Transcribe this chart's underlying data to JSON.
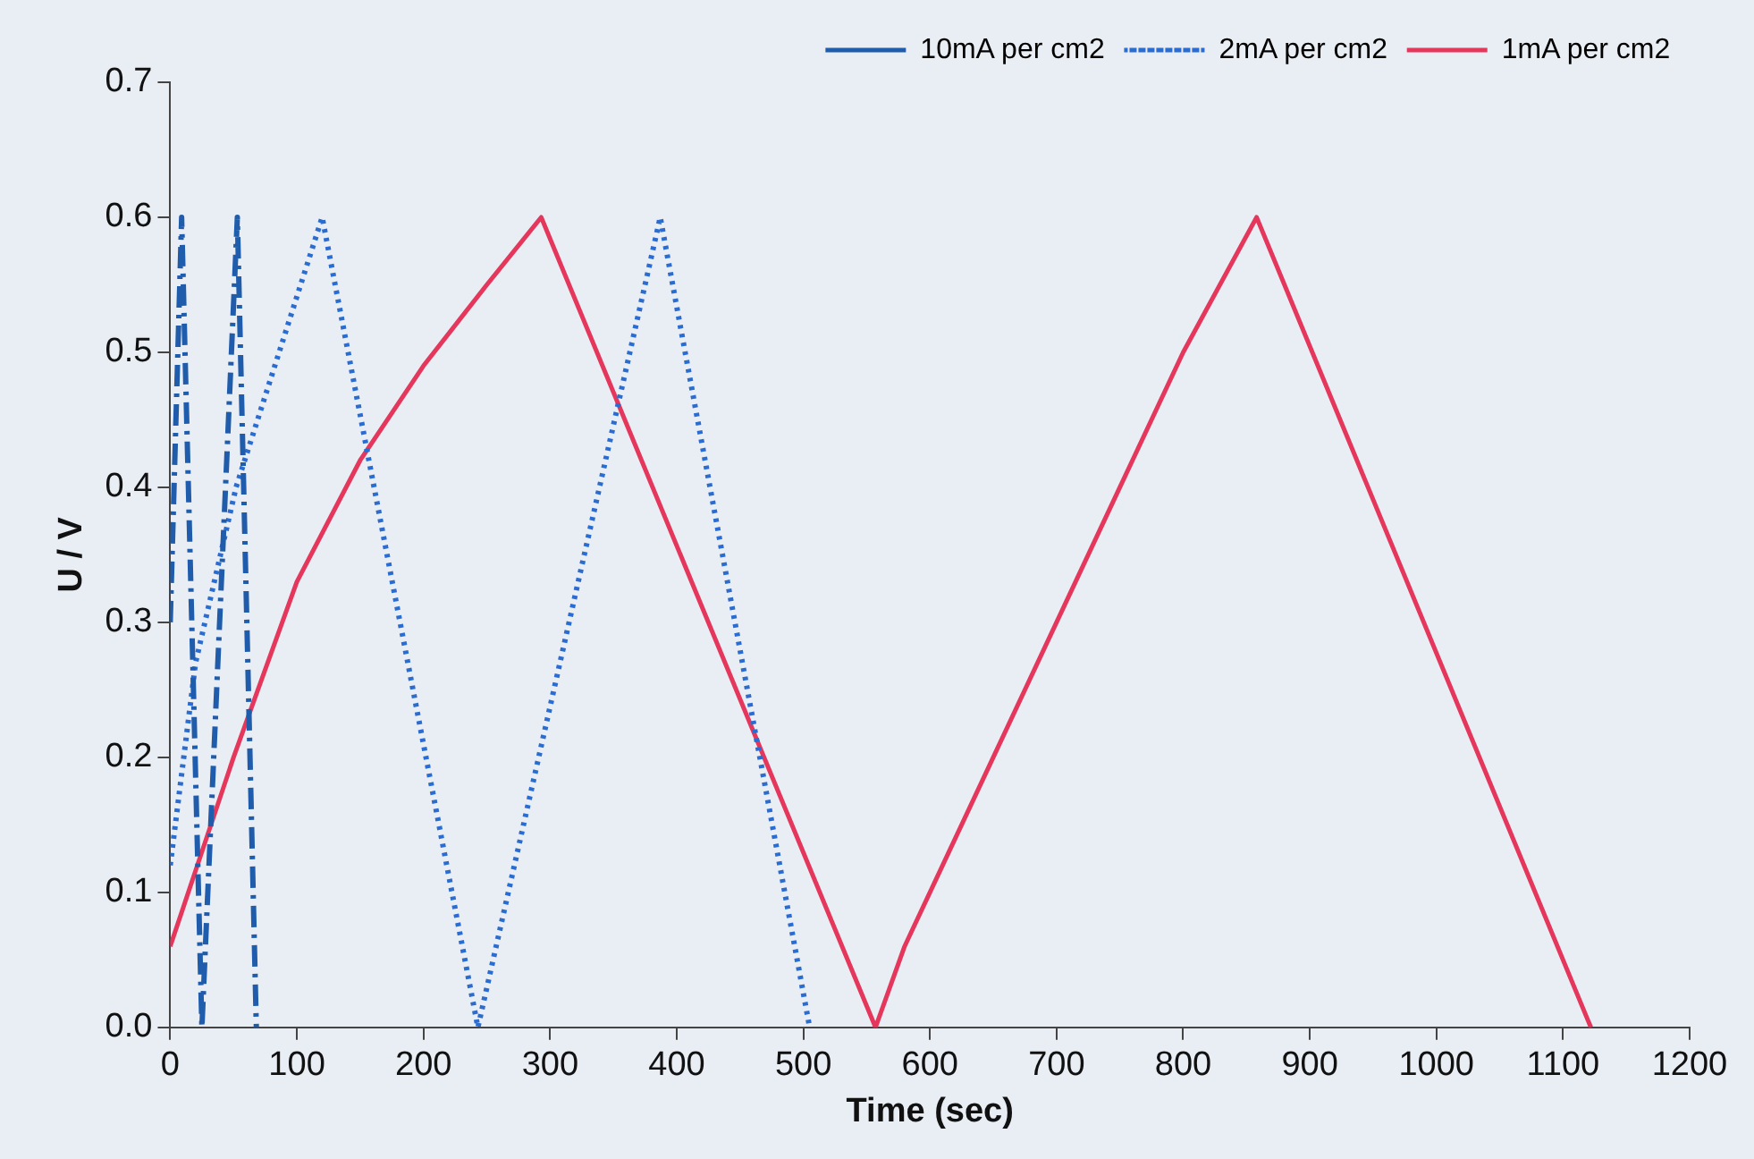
{
  "chart_data": {
    "type": "line",
    "xlabel": "Time (sec)",
    "ylabel": "U / V",
    "xlim": [
      0,
      1200
    ],
    "xticks": [
      0,
      100,
      200,
      300,
      400,
      500,
      600,
      700,
      800,
      900,
      1000,
      1100,
      1200
    ],
    "ylim": [
      0,
      0.7
    ],
    "yticks": [
      {
        "value": 0,
        "label": "0.0"
      },
      0.1,
      0.2,
      0.3,
      0.4,
      0.5,
      0.6,
      0.7
    ],
    "grid": false,
    "legend": "top",
    "marker": "none",
    "series": [
      {
        "name": "10mA per cm2",
        "color": "#1f5cab",
        "line_style": "dashdot",
        "x": [
          0,
          9,
          25,
          53,
          68
        ],
        "values": [
          0.3,
          0.6,
          0,
          0.6,
          0
        ]
      },
      {
        "name": "2mA per cm2",
        "color": "#2a6cd0",
        "line_style": "dotted",
        "x": [
          0,
          20,
          52,
          120,
          243,
          387,
          505
        ],
        "values": [
          0.12,
          0.27,
          0.4,
          0.6,
          0,
          0.6,
          0
        ]
      },
      {
        "name": "1mA per cm2",
        "color": "#e5375c",
        "line_style": "solid",
        "x": [
          0,
          50,
          100,
          150,
          200,
          250,
          293,
          557,
          580,
          600,
          650,
          700,
          750,
          800,
          858,
          1122
        ],
        "values": [
          0.06,
          0.2,
          0.33,
          0.42,
          0.49,
          0.55,
          0.6,
          0,
          0.06,
          0.1,
          0.2,
          0.3,
          0.4,
          0.5,
          0.6,
          0
        ]
      }
    ]
  }
}
